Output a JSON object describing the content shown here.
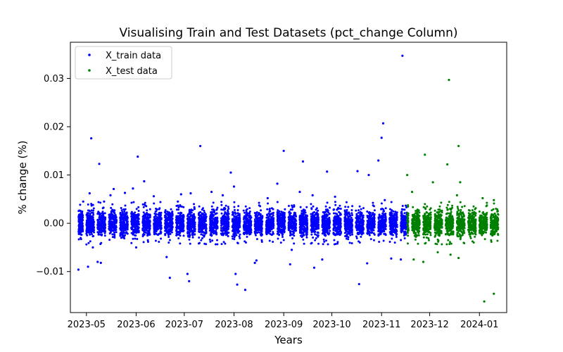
{
  "chart_data": {
    "type": "scatter",
    "title": "Visualising Train and Test Datasets (pct_change Column)",
    "xlabel": "Years",
    "ylabel": "% change (%)",
    "x_axis": {
      "kind": "date",
      "range": [
        "2023-04-21",
        "2024-01-18"
      ],
      "ticks": [
        {
          "date": "2023-05-01",
          "label": "2023-05"
        },
        {
          "date": "2023-06-01",
          "label": "2023-06"
        },
        {
          "date": "2023-07-01",
          "label": "2023-07"
        },
        {
          "date": "2023-08-01",
          "label": "2023-08"
        },
        {
          "date": "2023-09-01",
          "label": "2023-09"
        },
        {
          "date": "2023-10-01",
          "label": "2023-10"
        },
        {
          "date": "2023-11-01",
          "label": "2023-11"
        },
        {
          "date": "2023-12-01",
          "label": "2023-12"
        },
        {
          "date": "2024-01-01",
          "label": "2024-01"
        }
      ]
    },
    "y_axis": {
      "range": [
        -0.0185,
        0.0375
      ],
      "ticks": [
        {
          "value": -0.01,
          "label": "−0.01"
        },
        {
          "value": 0.0,
          "label": "0.00"
        },
        {
          "value": 0.01,
          "label": "0.01"
        },
        {
          "value": 0.02,
          "label": "0.02"
        },
        {
          "value": 0.03,
          "label": "0.03"
        }
      ]
    },
    "grid": false,
    "legend_position": "top-left",
    "series": [
      {
        "name": "X_train data",
        "color": "#0000ff",
        "date_range": [
          "2023-04-26",
          "2023-11-16"
        ],
        "typical_range": [
          -0.003,
          0.003
        ],
        "outliers": [
          [
            "2023-04-26",
            -0.0096
          ],
          [
            "2023-04-29",
            0.0045
          ],
          [
            "2023-05-02",
            -0.009
          ],
          [
            "2023-05-03",
            0.0062
          ],
          [
            "2023-05-04",
            0.0176
          ],
          [
            "2023-05-05",
            -0.005
          ],
          [
            "2023-05-08",
            -0.008
          ],
          [
            "2023-05-09",
            0.0123
          ],
          [
            "2023-05-10",
            -0.0082
          ],
          [
            "2023-05-12",
            0.0045
          ],
          [
            "2023-05-16",
            0.0058
          ],
          [
            "2023-05-18",
            0.0071
          ],
          [
            "2023-05-25",
            0.0063
          ],
          [
            "2023-05-30",
            0.0072
          ],
          [
            "2023-06-01",
            -0.005
          ],
          [
            "2023-06-02",
            0.0138
          ],
          [
            "2023-06-06",
            0.0087
          ],
          [
            "2023-06-12",
            0.0056
          ],
          [
            "2023-06-20",
            -0.007
          ],
          [
            "2023-06-22",
            -0.0113
          ],
          [
            "2023-06-27",
            0.0045
          ],
          [
            "2023-06-29",
            0.006
          ],
          [
            "2023-07-03",
            -0.0105
          ],
          [
            "2023-07-04",
            -0.012
          ],
          [
            "2023-07-05",
            0.0062
          ],
          [
            "2023-07-11",
            0.016
          ],
          [
            "2023-07-18",
            0.0065
          ],
          [
            "2023-07-25",
            0.0058
          ],
          [
            "2023-07-30",
            0.0105
          ],
          [
            "2023-08-01",
            0.0076
          ],
          [
            "2023-08-02",
            -0.0105
          ],
          [
            "2023-08-03",
            -0.0127
          ],
          [
            "2023-08-08",
            -0.0138
          ],
          [
            "2023-08-14",
            -0.0082
          ],
          [
            "2023-08-15",
            -0.0077
          ],
          [
            "2023-08-22",
            0.0052
          ],
          [
            "2023-08-28",
            0.0082
          ],
          [
            "2023-09-01",
            0.015
          ],
          [
            "2023-09-05",
            -0.0085
          ],
          [
            "2023-09-06",
            -0.0055
          ],
          [
            "2023-09-11",
            0.0065
          ],
          [
            "2023-09-13",
            0.0128
          ],
          [
            "2023-09-19",
            0.0058
          ],
          [
            "2023-09-20",
            -0.0092
          ],
          [
            "2023-09-25",
            -0.0075
          ],
          [
            "2023-09-28",
            0.0107
          ],
          [
            "2023-10-03",
            0.0055
          ],
          [
            "2023-10-17",
            0.0108
          ],
          [
            "2023-10-18",
            -0.0126
          ],
          [
            "2023-10-23",
            -0.0083
          ],
          [
            "2023-10-24",
            0.01
          ],
          [
            "2023-10-30",
            0.013
          ],
          [
            "2023-11-01",
            0.0177
          ],
          [
            "2023-11-02",
            0.0207
          ],
          [
            "2023-11-03",
            0.0048
          ],
          [
            "2023-11-07",
            -0.0073
          ],
          [
            "2023-11-13",
            -0.0075
          ],
          [
            "2023-11-14",
            0.0347
          ]
        ]
      },
      {
        "name": "X_test data",
        "color": "#008000",
        "date_range": [
          "2023-11-17",
          "2024-01-12"
        ],
        "typical_range": [
          -0.003,
          0.003
        ],
        "outliers": [
          [
            "2023-11-17",
            0.01
          ],
          [
            "2023-11-20",
            0.0065
          ],
          [
            "2023-11-21",
            -0.0075
          ],
          [
            "2023-11-28",
            0.0142
          ],
          [
            "2023-11-27",
            -0.008
          ],
          [
            "2023-12-03",
            0.0085
          ],
          [
            "2023-12-06",
            -0.006
          ],
          [
            "2023-12-12",
            0.0122
          ],
          [
            "2023-12-13",
            0.0297
          ],
          [
            "2023-12-14",
            -0.0065
          ],
          [
            "2023-12-18",
            0.0058
          ],
          [
            "2023-12-19",
            0.016
          ],
          [
            "2023-12-20",
            0.0085
          ],
          [
            "2023-12-19",
            -0.0072
          ],
          [
            "2024-01-03",
            0.0052
          ],
          [
            "2024-01-04",
            -0.0162
          ],
          [
            "2024-01-10",
            -0.0146
          ],
          [
            "2024-01-10",
            0.0048
          ]
        ]
      }
    ]
  }
}
